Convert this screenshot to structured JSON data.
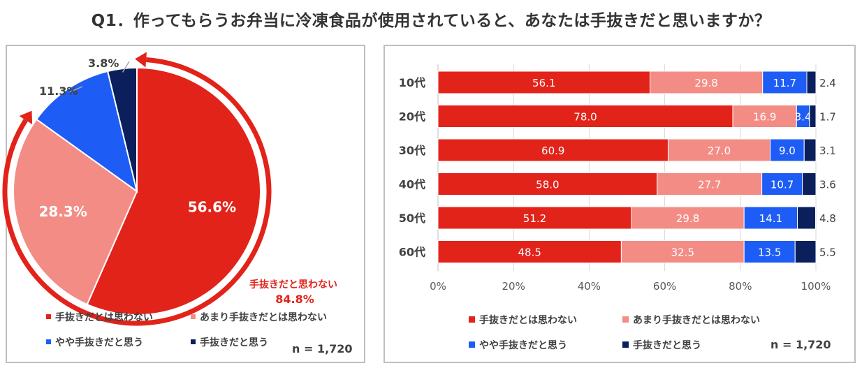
{
  "title": "Q1．作ってもらうお弁当に冷凍食品が使用されていると、あなたは手抜きだと思いますか？",
  "colors": {
    "not_lazy": "#e2231a",
    "not_really": "#f48c86",
    "somewhat": "#1e5df5",
    "lazy": "#0a1f5c",
    "arrow": "#e2231a"
  },
  "legend": [
    "手抜きだとは思わない",
    "あまり手抜きだとは思わない",
    "やや手抜きだと思う",
    "手抜きだと思う"
  ],
  "chart_data": [
    {
      "type": "pie",
      "labels": [
        "手抜きだとは思わない",
        "あまり手抜きだとは思わない",
        "やや手抜きだと思う",
        "手抜きだと思う"
      ],
      "values": [
        56.6,
        28.3,
        11.3,
        3.8
      ],
      "value_labels": [
        "56.6%",
        "28.3%",
        "11.3%",
        "3.8%"
      ],
      "annotation": {
        "text": "手抜きだと思わない",
        "value": "84.8%"
      },
      "n_label": "n = 1,720"
    },
    {
      "type": "bar",
      "stacked": "100%",
      "orientation": "horizontal",
      "categories": [
        "10代",
        "20代",
        "30代",
        "40代",
        "50代",
        "60代"
      ],
      "series": [
        {
          "name": "手抜きだとは思わない",
          "values": [
            56.1,
            78.0,
            60.9,
            58.0,
            51.2,
            48.5
          ],
          "labels": [
            "56.1",
            "78.0",
            "60.9",
            "58.0",
            "51.2",
            "48.5"
          ]
        },
        {
          "name": "あまり手抜きだとは思わない",
          "values": [
            29.8,
            16.9,
            27.0,
            27.7,
            29.8,
            32.5
          ],
          "labels": [
            "29.8",
            "16.9",
            "27.0",
            "27.7",
            "29.8",
            "32.5"
          ]
        },
        {
          "name": "やや手抜きだと思う",
          "values": [
            11.7,
            3.4,
            9.0,
            10.7,
            14.1,
            13.5
          ],
          "labels": [
            "11.7",
            "3.4",
            "9.0",
            "10.7",
            "14.1",
            "13.5"
          ]
        },
        {
          "name": "手抜きだと思う",
          "values": [
            2.4,
            1.7,
            3.1,
            3.6,
            4.8,
            5.5
          ],
          "labels": [
            "2.4",
            "1.7",
            "3.1",
            "3.6",
            "4.8",
            "5.5"
          ]
        }
      ],
      "xlim": [
        0,
        100
      ],
      "xticks": [
        "0%",
        "20%",
        "40%",
        "60%",
        "80%",
        "100%"
      ],
      "n_label": "n = 1,720"
    }
  ]
}
